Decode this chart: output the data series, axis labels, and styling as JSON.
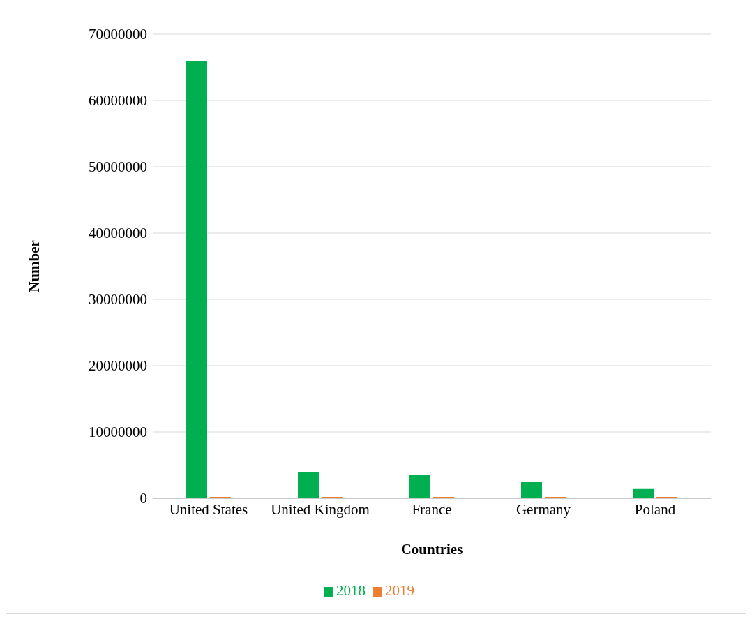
{
  "chart_data": {
    "type": "bar",
    "xlabel": "Countries",
    "ylabel": "Number",
    "categories": [
      "United States",
      "United Kingdom",
      "France",
      "Germany",
      "Poland"
    ],
    "series": [
      {
        "name": "2018",
        "color": "#00b050",
        "values": [
          66000000,
          4000000,
          3500000,
          2500000,
          1500000
        ]
      },
      {
        "name": "2019",
        "color": "#ed7d31",
        "values": [
          0,
          0,
          0,
          0,
          0
        ]
      }
    ],
    "ylim": [
      0,
      70000000
    ],
    "yticks": [
      0,
      10000000,
      20000000,
      30000000,
      40000000,
      50000000,
      60000000,
      70000000
    ],
    "grid": "y",
    "legend": "bottom"
  }
}
